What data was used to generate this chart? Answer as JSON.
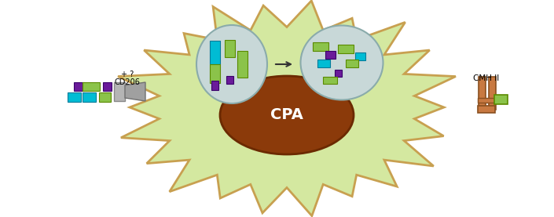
{
  "bg_color": "#ffffff",
  "cell_body_color": "#d4e8a0",
  "cell_border_color": "#c8a050",
  "nucleus_color": "#8b3a0a",
  "nucleus_border_color": "#6b2a00",
  "endosome1_color": "#c8d8d8",
  "endosome1_border": "#8aabab",
  "endosome2_color": "#c8d8d8",
  "endosome2_border": "#8aabab",
  "label_cpa": "CPA",
  "label_cd206": "CD206",
  "label_plus_question": "+ ?",
  "label_cmh": "CMH II",
  "cyan": "#00bcd4",
  "green": "#8bc34a",
  "purple": "#6a1b9a",
  "mhc_brown": "#c87941",
  "arrow_color": "#333333"
}
